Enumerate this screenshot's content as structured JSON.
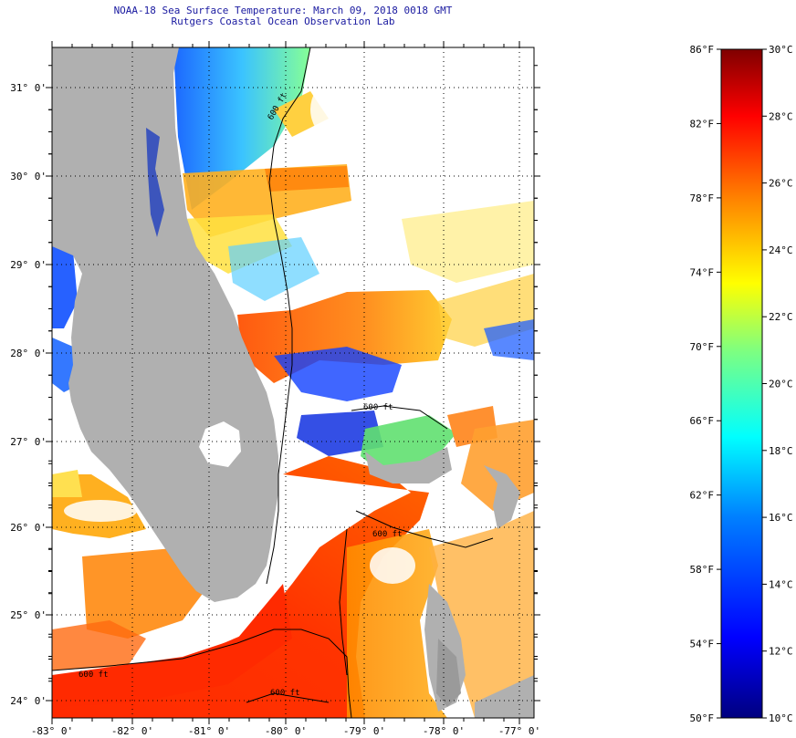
{
  "header": {
    "title": "NOAA-18 Sea Surface Temperature:  March 09, 2018 0018 GMT",
    "subtitle": "Rutgers Coastal Ocean Observation Lab"
  },
  "map": {
    "lon_labels": [
      "-83° 0'",
      "-82° 0'",
      "-81° 0'",
      "-80° 0'",
      "-79° 0'",
      "-78° 0'",
      "-77° 0'"
    ],
    "lat_labels": [
      "31° 0'",
      "30° 0'",
      "29° 0'",
      "28° 0'",
      "27° 0'",
      "26° 0'",
      "25° 0'",
      "24° 0'"
    ],
    "isobath_labels": [
      "600 ft",
      "600 ft",
      "600 ft",
      "600 ft",
      "600 ft"
    ],
    "colors": {
      "land": "#b0b0b0",
      "no_data": "#ffffff"
    }
  },
  "colorbar": {
    "f_labels": [
      "86°F",
      "82°F",
      "78°F",
      "74°F",
      "70°F",
      "66°F",
      "62°F",
      "58°F",
      "54°F",
      "50°F"
    ],
    "c_labels": [
      "30°C",
      "28°C",
      "26°C",
      "24°C",
      "22°C",
      "20°C",
      "18°C",
      "16°C",
      "14°C",
      "12°C",
      "10°C"
    ],
    "range_f": [
      50,
      86
    ],
    "range_c": [
      10,
      30
    ],
    "colormap": [
      "#00007f",
      "#0000ff",
      "#007fff",
      "#00ffff",
      "#7fff7f",
      "#ffff00",
      "#ff7f00",
      "#ff0000",
      "#7f0000"
    ]
  }
}
